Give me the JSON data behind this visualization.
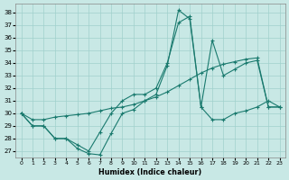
{
  "xlabel": "Humidex (Indice chaleur)",
  "xlim": [
    -0.5,
    23.5
  ],
  "ylim": [
    26.5,
    38.7
  ],
  "xticks": [
    0,
    1,
    2,
    3,
    4,
    5,
    6,
    7,
    8,
    9,
    10,
    11,
    12,
    13,
    14,
    15,
    16,
    17,
    18,
    19,
    20,
    21,
    22,
    23
  ],
  "yticks": [
    27,
    28,
    29,
    30,
    31,
    32,
    33,
    34,
    35,
    36,
    37,
    38
  ],
  "bg_color": "#c8e8e5",
  "line_color": "#1a7a6e",
  "figsize": [
    3.2,
    2.0
  ],
  "dpi": 100,
  "line1_x": [
    0,
    1,
    2,
    3,
    4,
    5,
    6,
    7,
    8,
    9,
    10,
    11,
    12,
    13,
    14,
    15,
    16,
    17,
    18,
    19,
    20,
    21,
    22,
    23
  ],
  "line1_y": [
    30,
    29,
    29,
    28,
    28,
    27.2,
    26.8,
    26.7,
    28.4,
    30,
    30.3,
    31.0,
    31.5,
    33.8,
    38.2,
    37.5,
    30.5,
    29.5,
    29.5,
    30.0,
    30.2,
    30.5,
    31.0,
    30.5
  ],
  "line2_x": [
    0,
    1,
    2,
    3,
    4,
    5,
    6,
    7,
    8,
    9,
    10,
    11,
    12,
    13,
    14,
    15,
    16,
    17,
    18,
    19,
    20,
    21,
    22,
    23
  ],
  "line2_y": [
    30,
    29,
    29,
    28,
    28,
    27.5,
    27.0,
    28.5,
    30.0,
    31.0,
    31.5,
    31.5,
    32.0,
    34.0,
    37.2,
    37.7,
    30.5,
    35.8,
    33.0,
    33.5,
    34.0,
    34.2,
    30.5,
    30.5
  ],
  "line3_x": [
    0,
    1,
    2,
    3,
    4,
    5,
    6,
    7,
    8,
    9,
    10,
    11,
    12,
    13,
    14,
    15,
    16,
    17,
    18,
    19,
    20,
    21,
    22,
    23
  ],
  "line3_y": [
    30.0,
    29.5,
    29.5,
    29.7,
    29.8,
    29.9,
    30.0,
    30.2,
    30.4,
    30.5,
    30.7,
    31.0,
    31.3,
    31.7,
    32.2,
    32.7,
    33.2,
    33.6,
    33.9,
    34.1,
    34.3,
    34.4,
    30.5,
    30.5
  ]
}
